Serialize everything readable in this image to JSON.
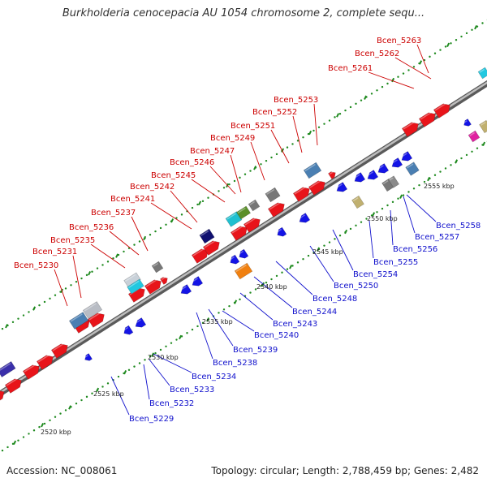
{
  "title": "Burkholderia cenocepacia AU 1054 chromosome 2, complete sequ...",
  "footer": {
    "accession": "Accession: NC_008061",
    "summary": "Topology: circular; Length: 2,788,459 bp; Genes: 2,482"
  },
  "scale_labels": [
    "2520 kbp",
    "2525 kbp",
    "2530 kbp",
    "2535 kbp",
    "2540 kbp",
    "2545 kbp",
    "2550 kbp",
    "2555 kbp"
  ],
  "forward_labels": [
    "Bcen_5230",
    "Bcen_5231",
    "Bcen_5235",
    "Bcen_5236",
    "Bcen_5237",
    "Bcen_5241",
    "Bcen_5242",
    "Bcen_5245",
    "Bcen_5246",
    "Bcen_5247",
    "Bcen_5249",
    "Bcen_5251",
    "Bcen_5252",
    "Bcen_5253",
    "Bcen_5261",
    "Bcen_5262",
    "Bcen_5263"
  ],
  "reverse_labels": [
    "Bcen_5229",
    "Bcen_5232",
    "Bcen_5233",
    "Bcen_5234",
    "Bcen_5238",
    "Bcen_5239",
    "Bcen_5240",
    "Bcen_5243",
    "Bcen_5244",
    "Bcen_5248",
    "Bcen_5250",
    "Bcen_5254",
    "Bcen_5255",
    "Bcen_5256",
    "Bcen_5257",
    "Bcen_5258"
  ],
  "colors": {
    "backbone": "#8c8c8c",
    "forward_gene": "#e8141a",
    "reverse_gene": "#1414e6",
    "dot": "#1f8a1f",
    "forward_label": "#cc0000",
    "reverse_label": "#1010cc"
  }
}
